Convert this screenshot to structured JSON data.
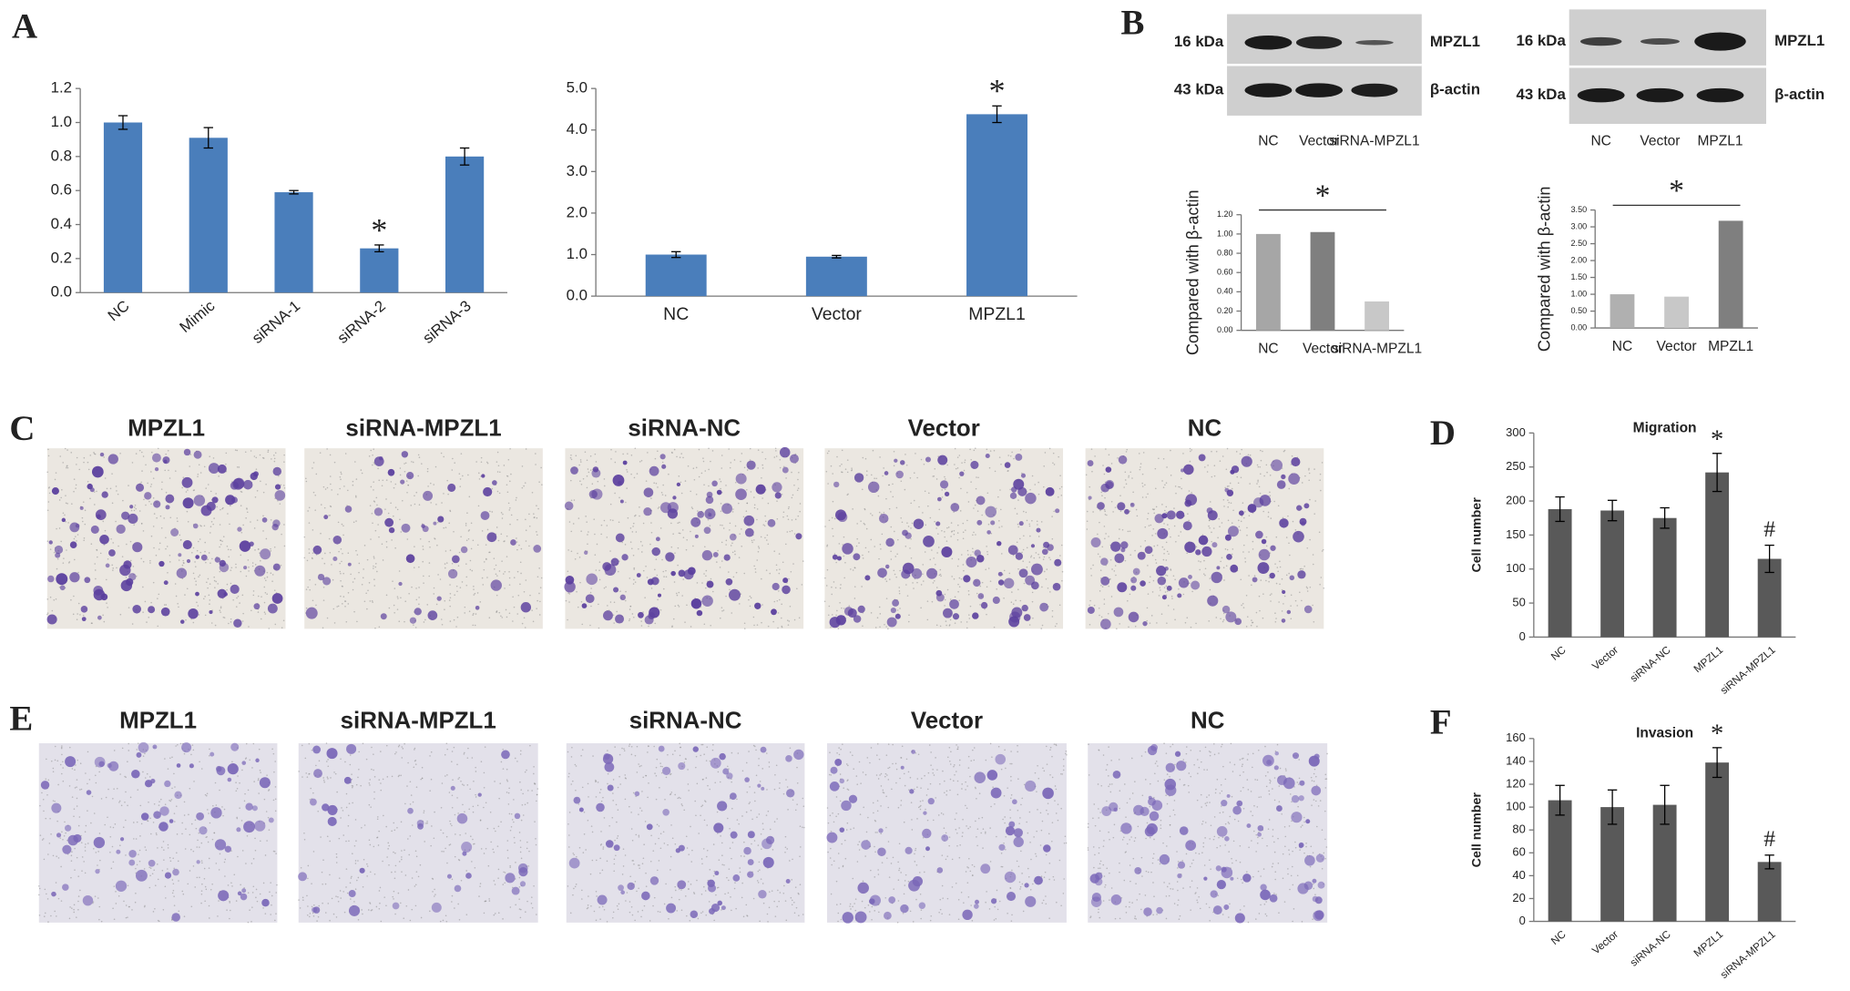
{
  "panel_labels": [
    "A",
    "B",
    "C",
    "D",
    "E",
    "F"
  ],
  "blots": [
    {
      "markers": [
        "16 kDa",
        "43 kDa"
      ],
      "proteins": [
        "MPZL1",
        "β-actin"
      ],
      "lanes": [
        "NC",
        "Vector",
        "siRNA-MPZL1"
      ]
    },
    {
      "markers": [
        "16 kDa",
        "43 kDa"
      ],
      "proteins": [
        "MPZL1",
        "β-actin"
      ],
      "lanes": [
        "NC",
        "Vector",
        "MPZL1"
      ]
    }
  ],
  "micrographs": [
    {
      "labels": [
        "MPZL1",
        "siRNA-MPZL1",
        "siRNA-NC",
        "Vector",
        "NC"
      ]
    },
    {
      "labels": [
        "MPZL1",
        "siRNA-MPZL1",
        "siRNA-NC",
        "Vector",
        "NC"
      ]
    }
  ],
  "chart_data": [
    {
      "type": "bar",
      "categories": [
        "NC",
        "Mimic",
        "siRNA-1",
        "siRNA-2",
        "siRNA-3"
      ],
      "values": [
        1.0,
        0.91,
        0.59,
        0.26,
        0.8
      ],
      "errors": [
        0.04,
        0.06,
        0.01,
        0.02,
        0.05
      ],
      "annotations": [
        null,
        null,
        null,
        "*",
        null
      ],
      "color": "#4a7ebb",
      "ylim": [
        0,
        1.2
      ],
      "yticks": [
        {
          "value": 0,
          "label": "0.0"
        },
        {
          "value": 0.2,
          "label": "0.2"
        },
        {
          "value": 0.4,
          "label": "0.4"
        },
        {
          "value": 0.6,
          "label": "0.6"
        },
        {
          "value": 0.8,
          "label": "0.8"
        },
        {
          "value": 1.0,
          "label": "1.0"
        },
        {
          "value": 1.2,
          "label": "1.2"
        }
      ]
    },
    {
      "type": "bar",
      "categories": [
        "NC",
        "Vector",
        "MPZL1"
      ],
      "values": [
        1.0,
        0.95,
        4.38
      ],
      "errors": [
        0.07,
        0.03,
        0.2
      ],
      "annotations": [
        null,
        null,
        "*"
      ],
      "color": "#4a7ebb",
      "ylim": [
        0,
        5
      ],
      "yticks": [
        {
          "value": 0,
          "label": "0.0"
        },
        {
          "value": 1,
          "label": "1.0"
        },
        {
          "value": 2,
          "label": "2.0"
        },
        {
          "value": 3,
          "label": "3.0"
        },
        {
          "value": 4,
          "label": "4.0"
        },
        {
          "value": 5,
          "label": "5.0"
        }
      ]
    },
    {
      "type": "bar",
      "y_label": "Compared with β-actin",
      "categories": [
        "NC",
        "Vector",
        "siRNA-MPZL1"
      ],
      "values": [
        1.0,
        1.02,
        0.3
      ],
      "colors": [
        "#a6a6a6",
        "#7f7f7f",
        "#c8c8c8"
      ],
      "annotation": "*",
      "ylim": [
        0,
        1.2
      ],
      "yticks": [
        {
          "value": 0,
          "label": "0.00"
        },
        {
          "value": 0.2,
          "label": "0.20"
        },
        {
          "value": 0.4,
          "label": "0.40"
        },
        {
          "value": 0.6,
          "label": "0.60"
        },
        {
          "value": 0.8,
          "label": "0.80"
        },
        {
          "value": 1.0,
          "label": "1.00"
        },
        {
          "value": 1.2,
          "label": "1.20"
        }
      ]
    },
    {
      "type": "bar",
      "y_label": "Compared with β-actin",
      "categories": [
        "NC",
        "Vector",
        "MPZL1"
      ],
      "values": [
        1.0,
        0.93,
        3.18
      ],
      "colors": [
        "#b0b0b0",
        "#c8c8c8",
        "#7f7f7f"
      ],
      "annotation": "*",
      "ylim": [
        0,
        3.5
      ],
      "yticks": [
        {
          "value": 0,
          "label": "0.00"
        },
        {
          "value": 0.5,
          "label": "0.50"
        },
        {
          "value": 1.0,
          "label": "1.00"
        },
        {
          "value": 1.5,
          "label": "1.50"
        },
        {
          "value": 2.0,
          "label": "2.00"
        },
        {
          "value": 2.5,
          "label": "2.50"
        },
        {
          "value": 3.0,
          "label": "3.00"
        },
        {
          "value": 3.5,
          "label": "3.50"
        }
      ]
    },
    {
      "type": "bar",
      "title": "Migration",
      "y_label": "Cell number",
      "categories": [
        "NC",
        "Vector",
        "siRNA-NC",
        "MPZL1",
        "siRNA-MPZL1"
      ],
      "values": [
        188,
        186,
        175,
        242,
        115
      ],
      "errors": [
        18,
        15,
        15,
        28,
        20
      ],
      "annotations": [
        null,
        null,
        null,
        "*",
        "#"
      ],
      "color": "#595959",
      "ylim": [
        0,
        300
      ],
      "yticks": [
        0,
        50,
        100,
        150,
        200,
        250,
        300
      ]
    },
    {
      "type": "bar",
      "title": "Invasion",
      "y_label": "Cell number",
      "categories": [
        "NC",
        "Vector",
        "siRNA-NC",
        "MPZL1",
        "siRNA-MPZL1"
      ],
      "values": [
        106,
        100,
        102,
        139,
        52
      ],
      "errors": [
        13,
        15,
        17,
        13,
        6
      ],
      "annotations": [
        null,
        null,
        null,
        "*",
        "#"
      ],
      "color": "#595959",
      "ylim": [
        0,
        160
      ],
      "yticks": [
        0,
        20,
        40,
        60,
        80,
        100,
        120,
        140,
        160
      ]
    }
  ]
}
